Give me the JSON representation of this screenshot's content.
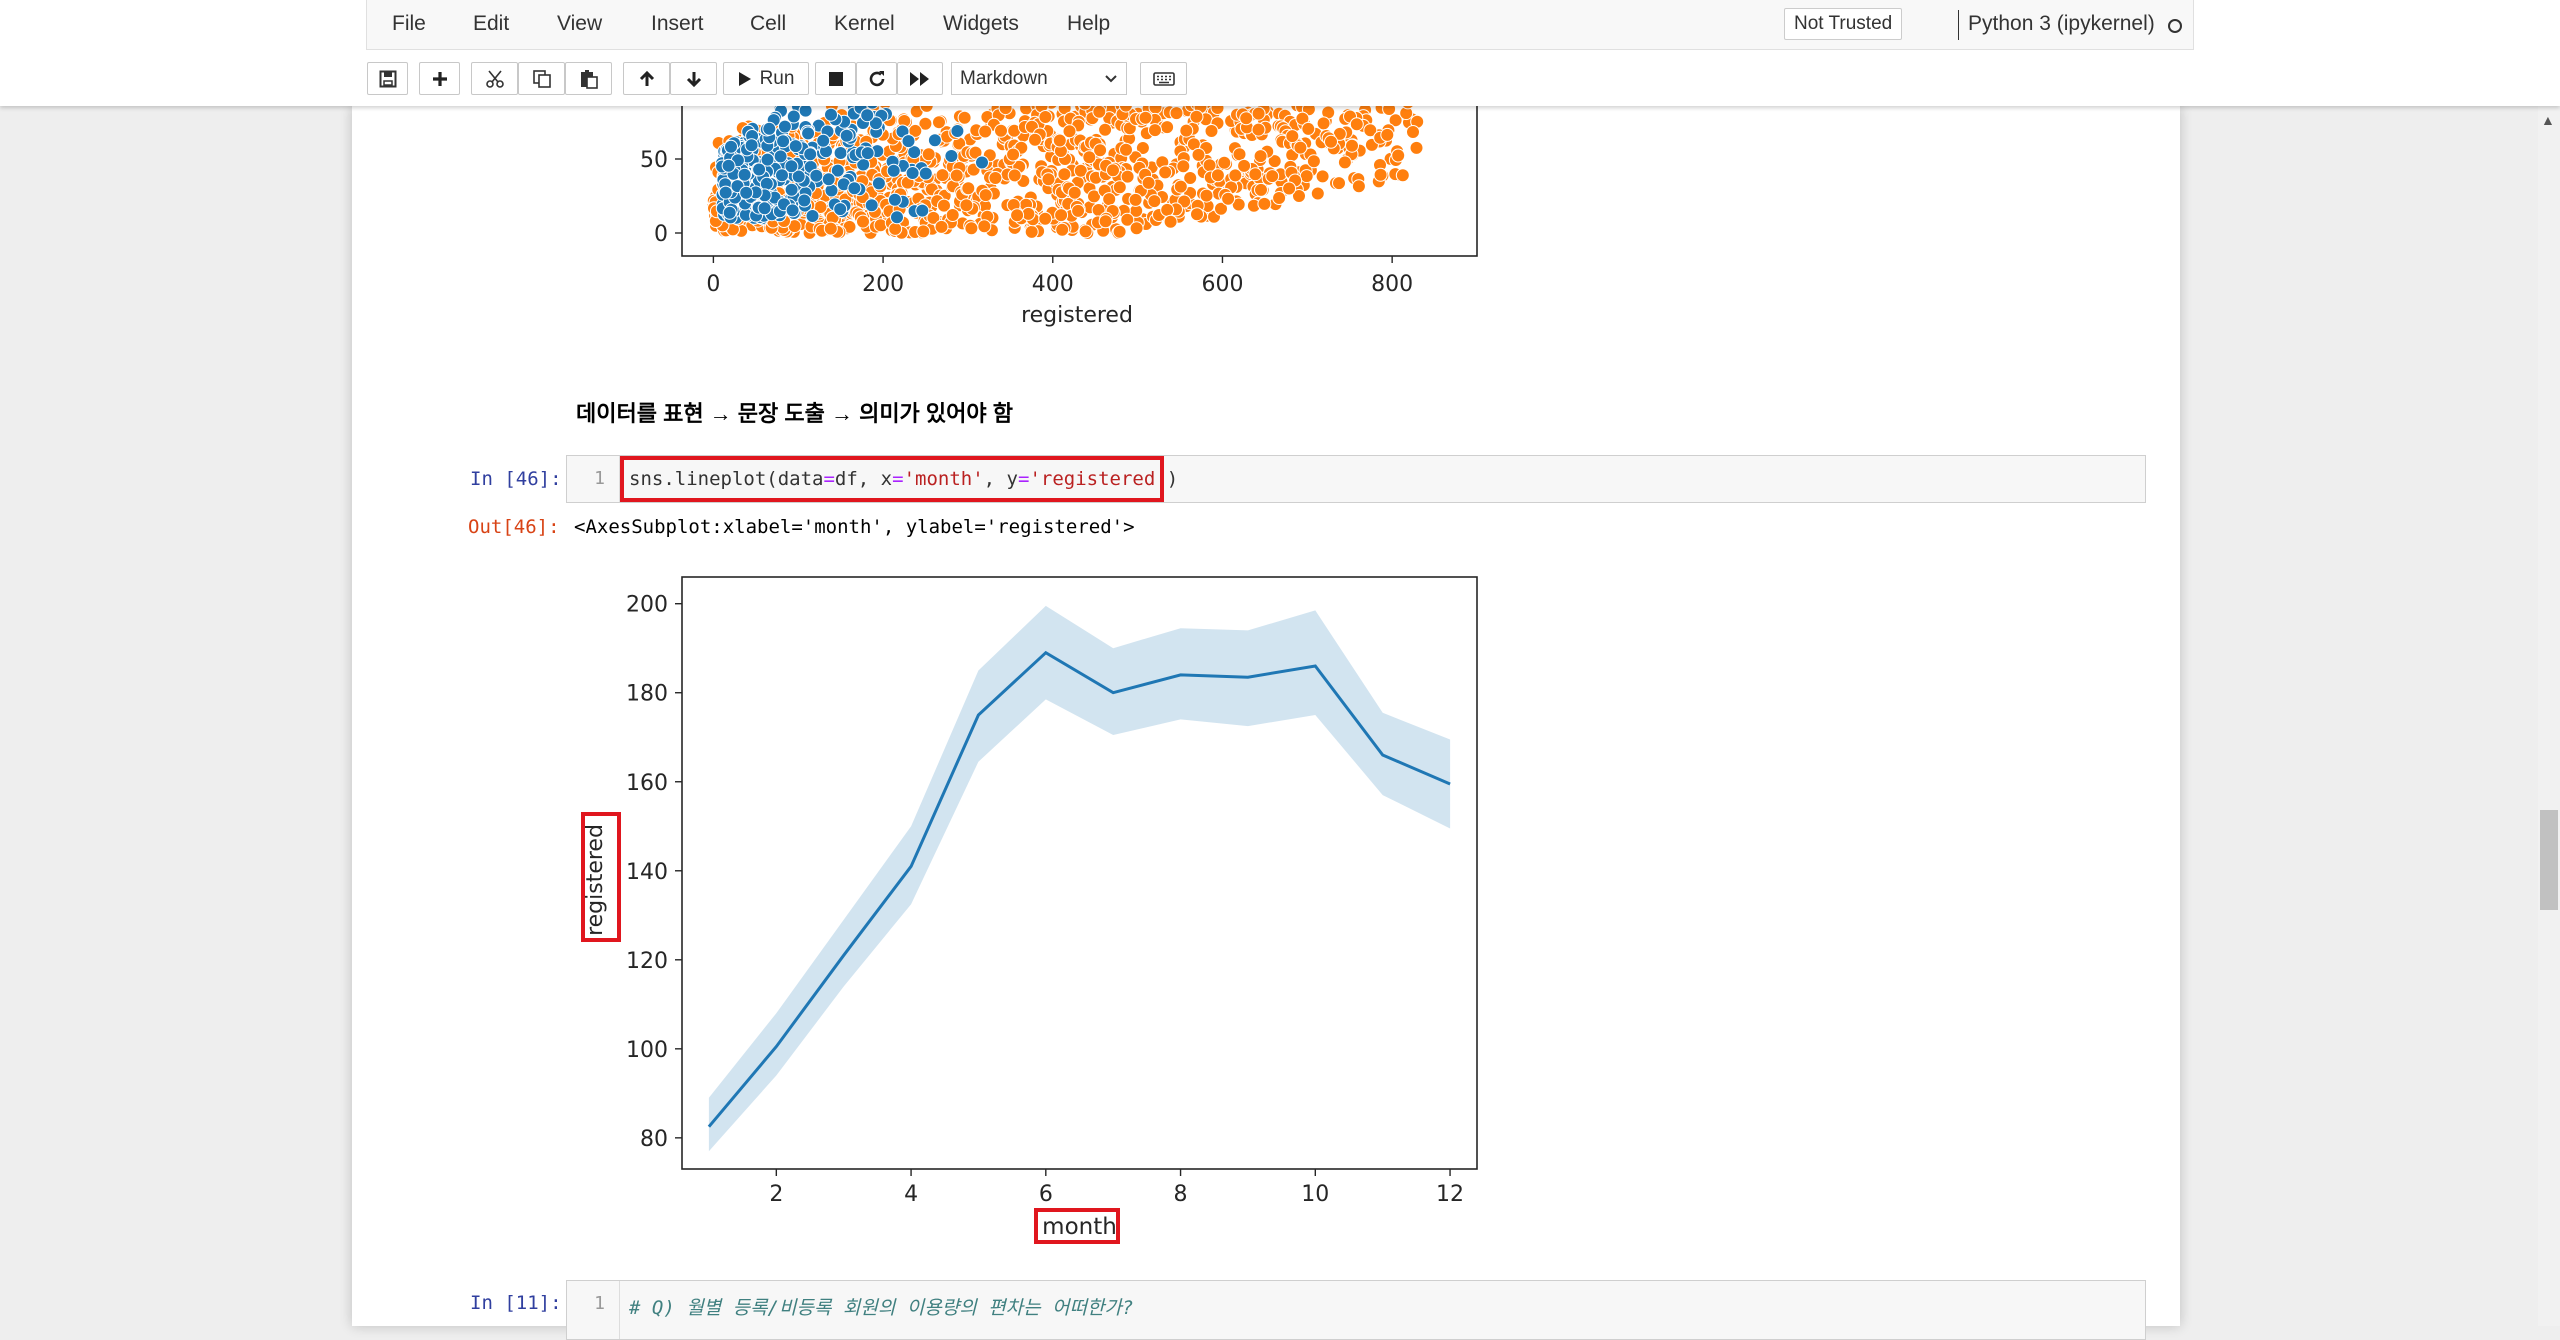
{
  "menubar": {
    "items": [
      "File",
      "Edit",
      "View",
      "Insert",
      "Cell",
      "Kernel",
      "Widgets",
      "Help"
    ],
    "trust_label": "Not Trusted",
    "kernel_name": "Python 3 (ipykernel)"
  },
  "toolbar": {
    "run_label": "Run",
    "cell_type": "Markdown",
    "buttons": [
      "save-icon",
      "plus-icon",
      "cut-icon",
      "copy-icon",
      "paste-icon",
      "arrow-up-icon",
      "arrow-down-icon",
      "run-icon",
      "stop-icon",
      "restart-icon",
      "fast-forward-icon",
      "keyboard-icon"
    ]
  },
  "scatter_plot": {
    "xlabel": "registered",
    "xticks": [
      "0",
      "200",
      "400",
      "600",
      "800"
    ],
    "yticks": [
      "50",
      "0"
    ],
    "colors": {
      "series_1": "#1f77b4",
      "series_2": "#ff7f0e"
    }
  },
  "markdown_cell": {
    "text": "데이터를 표현 → 문장 도출 → 의미가 있어야 함"
  },
  "cell_46": {
    "in_prompt": "In [46]:",
    "out_prompt": "Out[46]:",
    "line_number": "1",
    "code_prefix": "sns.lineplot(data",
    "code_eq1": "=",
    "code_mid1": "df, x",
    "code_eq2": "=",
    "code_str1": "'month'",
    "code_mid2": ", y",
    "code_eq3": "=",
    "code_str2": "'registered'",
    "code_suffix": ")",
    "output_text": "<AxesSubplot:xlabel='month', ylabel='registered'>"
  },
  "cell_11": {
    "in_prompt": "In [11]:",
    "line_number": "1",
    "code": "# Q) 월별 등록/비등록 회원의 이용량의 편차는 어떠한가?"
  },
  "chart_data": {
    "type": "line",
    "xlabel": "month",
    "ylabel": "registered",
    "xlim": [
      0.6,
      12.4
    ],
    "ylim": [
      73,
      206
    ],
    "xticks": [
      2,
      4,
      6,
      8,
      10,
      12
    ],
    "yticks": [
      80,
      100,
      120,
      140,
      160,
      180,
      200
    ],
    "x": [
      1,
      2,
      3,
      4,
      5,
      6,
      7,
      8,
      9,
      10,
      11,
      12
    ],
    "series": [
      {
        "values": [
          82.5,
          100.5,
          121,
          141,
          175,
          189,
          180,
          184,
          183.5,
          186,
          166,
          159.5
        ],
        "ci_low": [
          77,
          94,
          114,
          132.5,
          164.5,
          178.5,
          170.5,
          174,
          172.5,
          175,
          157,
          149.5
        ],
        "ci_high": [
          89,
          108,
          129,
          150,
          185,
          199.5,
          190,
          194.5,
          194,
          198.5,
          175.5,
          169.5
        ],
        "color": "#1f77b4"
      }
    ],
    "grid": false
  }
}
